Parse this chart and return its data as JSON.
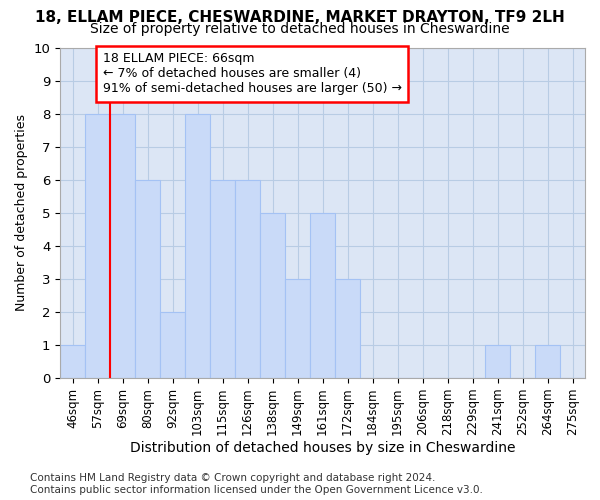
{
  "title": "18, ELLAM PIECE, CHESWARDINE, MARKET DRAYTON, TF9 2LH",
  "subtitle": "Size of property relative to detached houses in Cheswardine",
  "xlabel": "Distribution of detached houses by size in Cheswardine",
  "ylabel": "Number of detached properties",
  "bins": [
    "46sqm",
    "57sqm",
    "69sqm",
    "80sqm",
    "92sqm",
    "103sqm",
    "115sqm",
    "126sqm",
    "138sqm",
    "149sqm",
    "161sqm",
    "172sqm",
    "184sqm",
    "195sqm",
    "206sqm",
    "218sqm",
    "229sqm",
    "241sqm",
    "252sqm",
    "264sqm",
    "275sqm"
  ],
  "values": [
    1,
    8,
    8,
    6,
    2,
    8,
    6,
    6,
    5,
    3,
    5,
    3,
    0,
    0,
    0,
    0,
    0,
    1,
    0,
    1,
    0
  ],
  "bar_color": "#c9daf8",
  "bar_edge_color": "#a4c2f4",
  "annotation_line_bin_index": 2,
  "annotation_box_line1": "18 ELLAM PIECE: 66sqm",
  "annotation_box_line2": "← 7% of detached houses are smaller (4)",
  "annotation_box_line3": "91% of semi-detached houses are larger (50) →",
  "annotation_box_color": "red",
  "footer": "Contains HM Land Registry data © Crown copyright and database right 2024.\nContains public sector information licensed under the Open Government Licence v3.0.",
  "ylim": [
    0,
    10
  ],
  "yticks": [
    0,
    1,
    2,
    3,
    4,
    5,
    6,
    7,
    8,
    9,
    10
  ],
  "title_fontsize": 11,
  "subtitle_fontsize": 10,
  "xlabel_fontsize": 10,
  "ylabel_fontsize": 9,
  "tick_fontsize": 8.5,
  "footer_fontsize": 7.5,
  "annot_fontsize": 9,
  "background_color": "#ffffff",
  "plot_bg_color": "#dce6f5",
  "grid_color": "#b8cce4"
}
